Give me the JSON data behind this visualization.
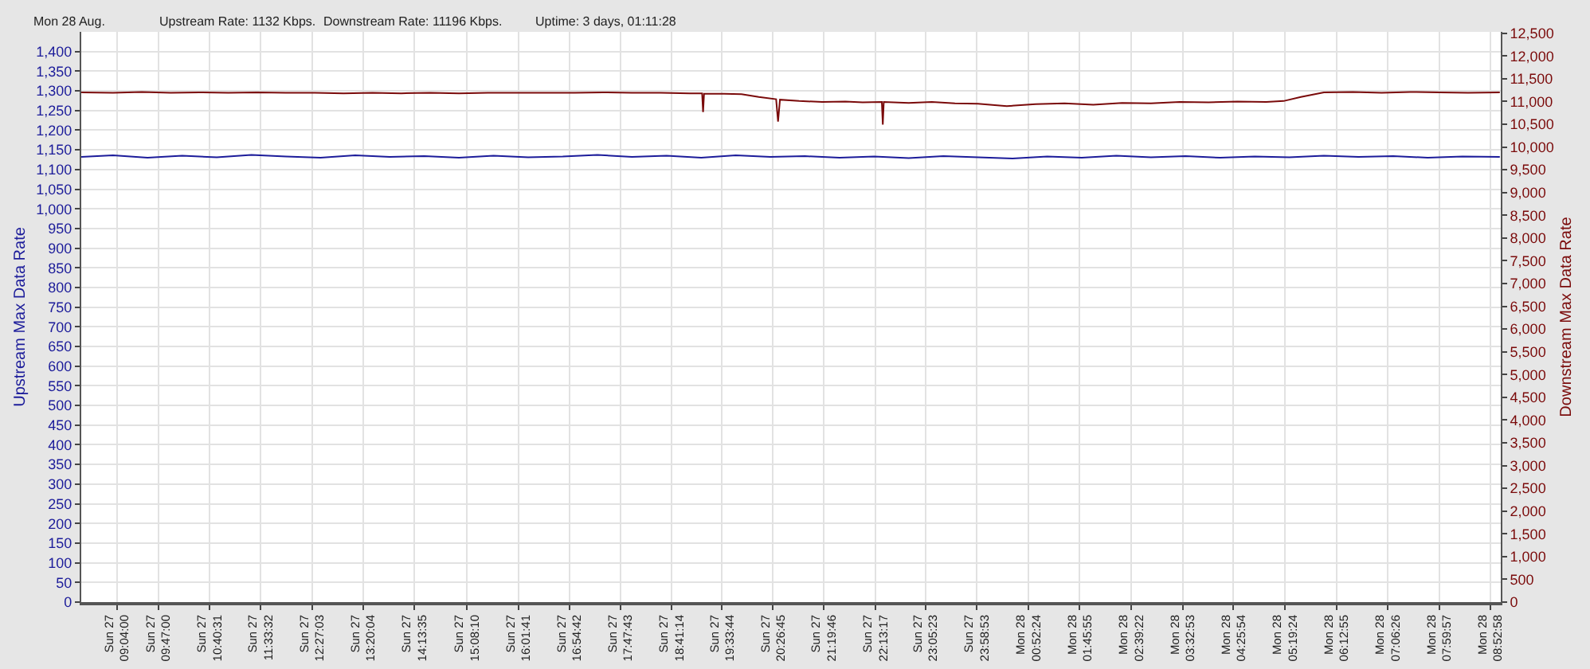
{
  "chart_data": {
    "type": "line",
    "annotations": [
      "Mon 28 Aug.",
      "Upstream Rate: 1132 Kbps.",
      "Downstream Rate: 11196 Kbps.",
      "Uptime: 3 days, 01:11:28"
    ],
    "ylabel": "Upstream Max Data Rate",
    "y2label": "Downstream Max Data Rate",
    "series": [
      {
        "color": "#1c1c9a",
        "x": [
          "--08-27T08:27",
          "--08-27T09:00",
          "--08-27T09:36",
          "--08-27T10:12",
          "--08-27T10:48",
          "--08-27T11:24",
          "--08-27T12:00",
          "--08-27T12:36",
          "--08-27T13:12",
          "--08-27T13:48",
          "--08-27T14:24",
          "--08-27T15:00",
          "--08-27T15:36",
          "--08-27T16:12",
          "--08-27T16:48",
          "--08-27T17:24",
          "--08-27T18:00",
          "--08-27T18:36",
          "--08-27T19:12",
          "--08-27T19:48",
          "--08-27T20:24",
          "--08-27T21:00",
          "--08-27T21:36",
          "--08-27T22:12",
          "--08-27T22:48",
          "--08-27T23:24",
          "--08-28T00:00",
          "--08-28T00:36",
          "--08-28T01:12",
          "--08-28T01:48",
          "--08-28T02:24",
          "--08-28T03:00",
          "--08-28T03:36",
          "--08-28T04:12",
          "--08-28T04:48",
          "--08-28T05:24",
          "--08-28T06:00",
          "--08-28T06:36",
          "--08-28T07:12",
          "--08-28T07:48",
          "--08-28T08:24",
          "--08-28T09:03"
        ],
        "values": [
          1132,
          1136,
          1130,
          1135,
          1131,
          1137,
          1133,
          1130,
          1136,
          1132,
          1134,
          1130,
          1135,
          1131,
          1133,
          1137,
          1132,
          1135,
          1130,
          1136,
          1132,
          1134,
          1130,
          1133,
          1129,
          1134,
          1131,
          1128,
          1133,
          1130,
          1135,
          1131,
          1134,
          1130,
          1133,
          1131,
          1135,
          1132,
          1134,
          1130,
          1133,
          1132
        ]
      },
      {
        "color": "#7a0a0a",
        "axis": "y2",
        "x": [
          "--08-27T08:27",
          "--08-27T09:00",
          "--08-27T09:30",
          "--08-27T10:00",
          "--08-27T10:30",
          "--08-27T11:00",
          "--08-27T11:30",
          "--08-27T12:00",
          "--08-27T12:30",
          "--08-27T13:00",
          "--08-27T13:30",
          "--08-27T14:00",
          "--08-27T14:30",
          "--08-27T15:00",
          "--08-27T15:30",
          "--08-27T16:00",
          "--08-27T16:30",
          "--08-27T17:00",
          "--08-27T17:30",
          "--08-27T18:00",
          "--08-27T18:30",
          "--08-27T19:00",
          "--08-27T19:13",
          "--08-27T19:14",
          "--08-27T19:15",
          "--08-27T19:36",
          "--08-27T19:54",
          "--08-27T20:12",
          "--08-27T20:30",
          "--08-27T20:32",
          "--08-27T20:34",
          "--08-27T20:54",
          "--08-27T21:18",
          "--08-27T21:42",
          "--08-27T22:00",
          "--08-27T22:20",
          "--08-27T22:21",
          "--08-27T22:22",
          "--08-27T22:48",
          "--08-27T23:12",
          "--08-27T23:36",
          "--08-28T00:00",
          "--08-28T00:30",
          "--08-28T01:00",
          "--08-28T01:30",
          "--08-28T02:00",
          "--08-28T02:30",
          "--08-28T03:00",
          "--08-28T03:30",
          "--08-28T04:00",
          "--08-28T04:30",
          "--08-28T05:00",
          "--08-28T05:18",
          "--08-28T05:36",
          "--08-28T06:00",
          "--08-28T06:30",
          "--08-28T07:00",
          "--08-28T07:30",
          "--08-28T08:00",
          "--08-28T08:30",
          "--08-28T09:03"
        ],
        "values": [
          11200,
          11190,
          11210,
          11190,
          11200,
          11190,
          11200,
          11190,
          11190,
          11180,
          11190,
          11180,
          11190,
          11180,
          11190,
          11190,
          11190,
          11190,
          11200,
          11190,
          11190,
          11180,
          11180,
          10770,
          11170,
          11170,
          11160,
          11100,
          11050,
          10560,
          11040,
          11010,
          10990,
          11000,
          10980,
          10990,
          10490,
          10990,
          10970,
          10990,
          10960,
          10950,
          10900,
          10940,
          10960,
          10930,
          10970,
          10960,
          10990,
          10980,
          11000,
          10990,
          11010,
          11100,
          11200,
          11210,
          11190,
          11210,
          11200,
          11190,
          11200
        ]
      }
    ],
    "xlim": [
      "--08-27T08:27",
      "--08-28T09:04"
    ],
    "xticks": [
      {
        "value": "--08-27T09:04:00",
        "label": "Sun 27\n09:04:00"
      },
      {
        "value": "--08-27T09:47:00",
        "label": "Sun 27\n09:47:00"
      },
      {
        "value": "--08-27T10:40:31",
        "label": "Sun 27\n10:40:31"
      },
      {
        "value": "--08-27T11:33:32",
        "label": "Sun 27\n11:33:32"
      },
      {
        "value": "--08-27T12:27:03",
        "label": "Sun 27\n12:27:03"
      },
      {
        "value": "--08-27T13:20:04",
        "label": "Sun 27\n13:20:04"
      },
      {
        "value": "--08-27T14:13:35",
        "label": "Sun 27\n14:13:35"
      },
      {
        "value": "--08-27T15:08:10",
        "label": "Sun 27\n15:08:10"
      },
      {
        "value": "--08-27T16:01:41",
        "label": "Sun 27\n16:01:41"
      },
      {
        "value": "--08-27T16:54:42",
        "label": "Sun 27\n16:54:42"
      },
      {
        "value": "--08-27T17:47:43",
        "label": "Sun 27\n17:47:43"
      },
      {
        "value": "--08-27T18:41:14",
        "label": "Sun 27\n18:41:14"
      },
      {
        "value": "--08-27T19:33:44",
        "label": "Sun 27\n19:33:44"
      },
      {
        "value": "--08-27T20:26:45",
        "label": "Sun 27\n20:26:45"
      },
      {
        "value": "--08-27T21:19:46",
        "label": "Sun 27\n21:19:46"
      },
      {
        "value": "--08-27T22:13:17",
        "label": "Sun 27\n22:13:17"
      },
      {
        "value": "--08-27T23:05:23",
        "label": "Sun 27\n23:05:23"
      },
      {
        "value": "--08-27T23:58:53",
        "label": "Sun 27\n23:58:53"
      },
      {
        "value": "--08-28T00:52:24",
        "label": "Mon 28\n00:52:24"
      },
      {
        "value": "--08-28T01:45:55",
        "label": "Mon 28\n01:45:55"
      },
      {
        "value": "--08-28T02:39:22",
        "label": "Mon 28\n02:39:22"
      },
      {
        "value": "--08-28T03:32:53",
        "label": "Mon 28\n03:32:53"
      },
      {
        "value": "--08-28T04:25:54",
        "label": "Mon 28\n04:25:54"
      },
      {
        "value": "--08-28T05:19:24",
        "label": "Mon 28\n05:19:24"
      },
      {
        "value": "--08-28T06:12:55",
        "label": "Mon 28\n06:12:55"
      },
      {
        "value": "--08-28T07:06:26",
        "label": "Mon 28\n07:06:26"
      },
      {
        "value": "--08-28T07:59:57",
        "label": "Mon 28\n07:59:57"
      },
      {
        "value": "--08-28T08:52:58",
        "label": "Mon 28\n08:52:58"
      }
    ],
    "ylim": [
      0,
      1450
    ],
    "yticks": [
      0,
      50,
      100,
      150,
      200,
      250,
      300,
      350,
      400,
      450,
      500,
      550,
      600,
      650,
      700,
      750,
      800,
      850,
      900,
      950,
      {
        "value": 1000,
        "label": "1,000"
      },
      {
        "value": 1050,
        "label": "1,050"
      },
      {
        "value": 1100,
        "label": "1,100"
      },
      {
        "value": 1150,
        "label": "1,150"
      },
      {
        "value": 1200,
        "label": "1,200"
      },
      {
        "value": 1250,
        "label": "1,250"
      },
      {
        "value": 1300,
        "label": "1,300"
      },
      {
        "value": 1350,
        "label": "1,350"
      },
      {
        "value": 1400,
        "label": "1,400"
      }
    ],
    "y2lim": [
      0,
      12530
    ],
    "y2ticks": [
      0,
      500,
      {
        "value": 1000,
        "label": "1,000"
      },
      {
        "value": 1500,
        "label": "1,500"
      },
      {
        "value": 2000,
        "label": "2,000"
      },
      {
        "value": 2500,
        "label": "2,500"
      },
      {
        "value": 3000,
        "label": "3,000"
      },
      {
        "value": 3500,
        "label": "3,500"
      },
      {
        "value": 4000,
        "label": "4,000"
      },
      {
        "value": 4500,
        "label": "4,500"
      },
      {
        "value": 5000,
        "label": "5,000"
      },
      {
        "value": 5500,
        "label": "5,500"
      },
      {
        "value": 6000,
        "label": "6,000"
      },
      {
        "value": 6500,
        "label": "6,500"
      },
      {
        "value": 7000,
        "label": "7,000"
      },
      {
        "value": 7500,
        "label": "7,500"
      },
      {
        "value": 8000,
        "label": "8,000"
      },
      {
        "value": 8500,
        "label": "8,500"
      },
      {
        "value": 9000,
        "label": "9,000"
      },
      {
        "value": 9500,
        "label": "9,500"
      },
      {
        "value": 10000,
        "label": "10,000"
      },
      {
        "value": 10500,
        "label": "10,500"
      },
      {
        "value": 11000,
        "label": "11,000"
      },
      {
        "value": 11500,
        "label": "11,500"
      },
      {
        "value": 12000,
        "label": "12,000"
      },
      {
        "value": 12500,
        "label": "12,500"
      }
    ],
    "grid": true,
    "marker": "none",
    "line_style": "solid"
  }
}
